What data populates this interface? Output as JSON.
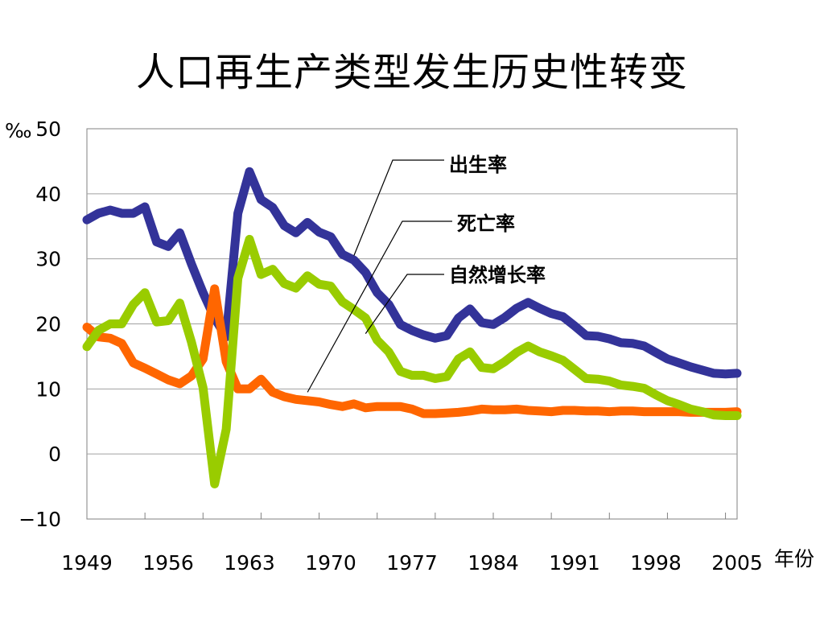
{
  "title": "人口再生产类型发生历史性转变",
  "chart_data": {
    "type": "line",
    "title": "人口再生产类型发生历史性转变",
    "ylabel": "‰",
    "xlabel": "年份",
    "ylim": [
      -10,
      50
    ],
    "xlim": [
      1949,
      2005
    ],
    "yticks": [
      -10,
      0,
      10,
      20,
      30,
      40,
      50
    ],
    "xticks": [
      "1949",
      "1956",
      "1963",
      "1970",
      "1977",
      "1984",
      "1991",
      "1998",
      "2005"
    ],
    "grid": true,
    "series": [
      {
        "name": "出生率",
        "color": "#333399",
        "x": [
          1949,
          1950,
          1951,
          1952,
          1953,
          1954,
          1955,
          1956,
          1957,
          1958,
          1959,
          1960,
          1961,
          1962,
          1963,
          1964,
          1965,
          1966,
          1967,
          1968,
          1969,
          1970,
          1971,
          1972,
          1973,
          1974,
          1975,
          1976,
          1977,
          1978,
          1979,
          1980,
          1981,
          1982,
          1983,
          1984,
          1985,
          1986,
          1987,
          1988,
          1989,
          1990,
          1991,
          1992,
          1993,
          1994,
          1995,
          1996,
          1997,
          1998,
          1999,
          2000,
          2001,
          2002,
          2003,
          2004,
          2005
        ],
        "y": [
          36.0,
          37.0,
          37.5,
          37.0,
          37.0,
          38.0,
          32.6,
          31.9,
          34.0,
          29.2,
          24.8,
          20.9,
          18.0,
          37.0,
          43.4,
          39.1,
          37.9,
          35.1,
          34.0,
          35.6,
          34.1,
          33.4,
          30.7,
          29.8,
          27.9,
          24.8,
          23.0,
          19.9,
          19.0,
          18.3,
          17.8,
          18.2,
          20.9,
          22.3,
          20.2,
          19.9,
          21.0,
          22.4,
          23.3,
          22.4,
          21.6,
          21.1,
          19.7,
          18.2,
          18.1,
          17.7,
          17.1,
          17.0,
          16.6,
          15.6,
          14.6,
          14.0,
          13.4,
          12.9,
          12.4,
          12.3,
          12.4
        ]
      },
      {
        "name": "死亡率",
        "color": "#ff6600",
        "x": [
          1949,
          1950,
          1951,
          1952,
          1953,
          1954,
          1955,
          1956,
          1957,
          1958,
          1959,
          1960,
          1961,
          1962,
          1963,
          1964,
          1965,
          1966,
          1967,
          1968,
          1969,
          1970,
          1971,
          1972,
          1973,
          1974,
          1975,
          1976,
          1977,
          1978,
          1979,
          1980,
          1981,
          1982,
          1983,
          1984,
          1985,
          1986,
          1987,
          1988,
          1989,
          1990,
          1991,
          1992,
          1993,
          1994,
          1995,
          1996,
          1997,
          1998,
          1999,
          2000,
          2001,
          2002,
          2003,
          2004,
          2005
        ],
        "y": [
          19.5,
          18.0,
          17.8,
          17.0,
          14.0,
          13.2,
          12.3,
          11.4,
          10.8,
          12.0,
          14.6,
          25.4,
          14.2,
          10.0,
          10.0,
          11.5,
          9.5,
          8.8,
          8.4,
          8.2,
          8.0,
          7.6,
          7.3,
          7.7,
          7.1,
          7.3,
          7.3,
          7.3,
          6.9,
          6.2,
          6.2,
          6.3,
          6.4,
          6.6,
          6.9,
          6.8,
          6.8,
          6.9,
          6.7,
          6.6,
          6.5,
          6.7,
          6.7,
          6.6,
          6.6,
          6.5,
          6.6,
          6.6,
          6.5,
          6.5,
          6.5,
          6.5,
          6.4,
          6.4,
          6.4,
          6.4,
          6.5
        ]
      },
      {
        "name": "自然增长率",
        "color": "#99cc00",
        "x": [
          1949,
          1950,
          1951,
          1952,
          1953,
          1954,
          1955,
          1956,
          1957,
          1958,
          1959,
          1960,
          1961,
          1962,
          1963,
          1964,
          1965,
          1966,
          1967,
          1968,
          1969,
          1970,
          1971,
          1972,
          1973,
          1974,
          1975,
          1976,
          1977,
          1978,
          1979,
          1980,
          1981,
          1982,
          1983,
          1984,
          1985,
          1986,
          1987,
          1988,
          1989,
          1990,
          1991,
          1992,
          1993,
          1994,
          1995,
          1996,
          1997,
          1998,
          1999,
          2000,
          2001,
          2002,
          2003,
          2004,
          2005
        ],
        "y": [
          16.5,
          19.0,
          20.0,
          20.0,
          23.0,
          24.8,
          20.3,
          20.5,
          23.2,
          17.2,
          10.2,
          -4.6,
          3.8,
          27.0,
          33.0,
          27.6,
          28.4,
          26.2,
          25.5,
          27.4,
          26.1,
          25.8,
          23.4,
          22.2,
          20.9,
          17.5,
          15.7,
          12.7,
          12.1,
          12.1,
          11.6,
          11.9,
          14.6,
          15.7,
          13.3,
          13.1,
          14.2,
          15.6,
          16.6,
          15.7,
          15.1,
          14.4,
          13.0,
          11.6,
          11.5,
          11.2,
          10.6,
          10.4,
          10.1,
          9.1,
          8.2,
          7.6,
          6.9,
          6.5,
          6.0,
          5.9,
          5.9
        ]
      }
    ],
    "annotations": [
      {
        "text": "出生率",
        "series": "出生率"
      },
      {
        "text": "死亡率",
        "series": "死亡率"
      },
      {
        "text": "自然增长率",
        "series": "自然增长率"
      }
    ]
  }
}
